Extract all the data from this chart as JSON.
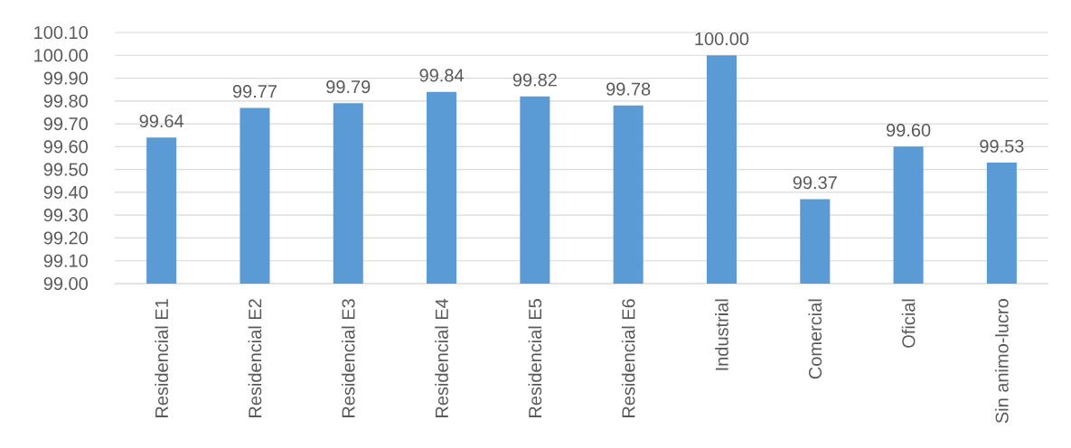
{
  "chart_data": {
    "type": "bar",
    "categories": [
      "Residencial E1",
      "Residencial E2",
      "Residencial E3",
      "Residencial E4",
      "Residencial E5",
      "Residencial E6",
      "Industrial",
      "Comercial",
      "Oficial",
      "Sin animo-lucro"
    ],
    "values": [
      99.64,
      99.77,
      99.79,
      99.84,
      99.82,
      99.78,
      100.0,
      99.37,
      99.6,
      99.53
    ],
    "value_labels": [
      "99.64",
      "99.77",
      "99.79",
      "99.84",
      "99.82",
      "99.78",
      "100.00",
      "99.37",
      "99.60",
      "99.53"
    ],
    "color": "#5b9bd5",
    "ylim": [
      99.0,
      100.1
    ],
    "yticks": [
      {
        "value": 99.0,
        "label": "99.00"
      },
      {
        "value": 99.1,
        "label": "99.10"
      },
      {
        "value": 99.2,
        "label": "99.20"
      },
      {
        "value": 99.3,
        "label": "99.30"
      },
      {
        "value": 99.4,
        "label": "99.40"
      },
      {
        "value": 99.5,
        "label": "99.50"
      },
      {
        "value": 99.6,
        "label": "99.60"
      },
      {
        "value": 99.7,
        "label": "99.70"
      },
      {
        "value": 99.8,
        "label": "99.80"
      },
      {
        "value": 99.9,
        "label": "99.90"
      },
      {
        "value": 100.0,
        "label": "100.00"
      },
      {
        "value": 100.1,
        "label": "100.10"
      }
    ],
    "grid": "y"
  }
}
